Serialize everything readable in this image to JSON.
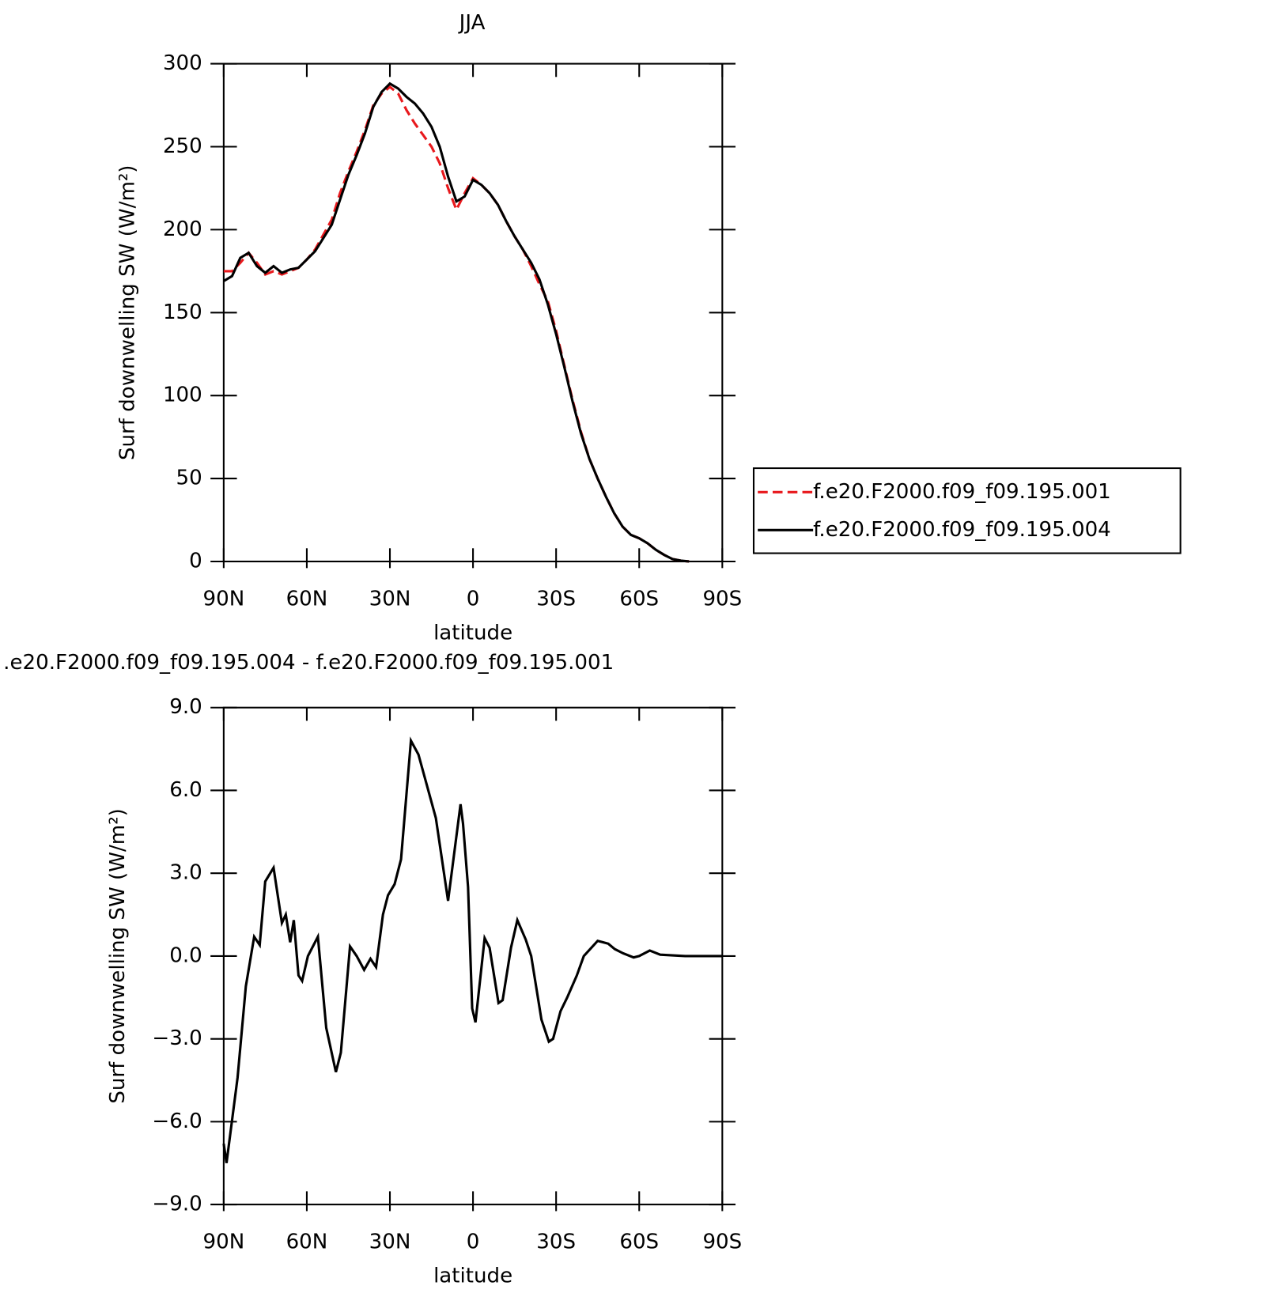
{
  "chart_data": [
    {
      "type": "line",
      "title": "JJA",
      "x_label": "latitude",
      "y_label": "Surf downwelling SW (W/m²)",
      "xlim": [
        90,
        -90
      ],
      "xticks": [
        {
          "value": 90,
          "label": "90N"
        },
        {
          "value": 60,
          "label": "60N"
        },
        {
          "value": 30,
          "label": "30N"
        },
        0,
        {
          "value": -30,
          "label": "30S"
        },
        {
          "value": -60,
          "label": "60S"
        },
        {
          "value": -90,
          "label": "90S"
        }
      ],
      "ylim": [
        0,
        300
      ],
      "yticks": [
        0,
        50,
        100,
        150,
        200,
        250,
        300
      ],
      "legend": "right",
      "x": [
        90,
        87,
        84,
        81,
        78,
        75,
        72,
        69,
        66,
        63,
        60,
        57,
        54,
        51,
        48,
        45,
        42,
        39,
        36,
        33,
        30,
        27,
        24,
        21,
        18,
        15,
        12,
        9,
        6,
        3,
        0,
        -3,
        -6,
        -9,
        -12,
        -15,
        -18,
        -21,
        -24,
        -27,
        -30,
        -33,
        -36,
        -39,
        -42,
        -45,
        -48,
        -51,
        -54,
        -57,
        -60,
        -63,
        -66,
        -69,
        -72,
        -75,
        -78,
        -81,
        -84,
        -87,
        -90
      ],
      "series": [
        {
          "name": "f.e20.F2000.f09_f09.195.001",
          "color": "#e8191d",
          "line_style": "dashed",
          "values": [
            175,
            175,
            180,
            186,
            180,
            173,
            175,
            173,
            175,
            177,
            182,
            188,
            197,
            206,
            222,
            235,
            247,
            260,
            275,
            282,
            286,
            282,
            272,
            264,
            257,
            250,
            240,
            225,
            212,
            222,
            231,
            227,
            222,
            215,
            205,
            196,
            188,
            178,
            167,
            157,
            139,
            118,
            97,
            78,
            62,
            50,
            39,
            29,
            21,
            16,
            14,
            11,
            7,
            4,
            1.5,
            0.5,
            0,
            null,
            null,
            null,
            null
          ]
        },
        {
          "name": "f.e20.F2000.f09_f09.195.004",
          "color": "#000000",
          "line_style": "solid",
          "values": [
            169,
            172,
            183,
            186,
            178,
            174,
            178,
            174,
            176,
            177,
            182,
            187,
            195,
            203,
            218,
            233,
            245,
            258,
            274,
            283,
            288,
            285,
            280,
            276,
            270,
            262,
            250,
            232,
            217,
            220,
            230,
            227,
            222,
            215,
            205,
            196,
            188,
            180,
            170,
            155,
            137,
            117,
            96,
            77,
            62,
            50,
            39,
            29,
            21,
            16,
            14,
            11,
            7,
            4,
            1.5,
            0.5,
            0,
            null,
            null,
            null,
            null
          ]
        }
      ]
    },
    {
      "type": "line",
      "title": ".e20.F2000.f09_f09.195.004 - f.e20.F2000.f09_f09.195.001",
      "x_label": "latitude",
      "y_label": "Surf downwelling SW (W/m²)",
      "xlim": [
        90,
        -90
      ],
      "xticks": [
        {
          "value": 90,
          "label": "90N"
        },
        {
          "value": 60,
          "label": "60N"
        },
        {
          "value": 30,
          "label": "30N"
        },
        0,
        {
          "value": -30,
          "label": "30S"
        },
        {
          "value": -60,
          "label": "60S"
        },
        {
          "value": -90,
          "label": "90S"
        }
      ],
      "ylim": [
        -9,
        9
      ],
      "yticks": [
        {
          "value": -9,
          "label": "−9.0"
        },
        {
          "value": -6,
          "label": "−6.0"
        },
        {
          "value": -3,
          "label": "−3.0"
        },
        {
          "value": 0,
          "label": "0.0"
        },
        {
          "value": 3,
          "label": "3.0"
        },
        {
          "value": 6,
          "label": "6.0"
        },
        {
          "value": 9,
          "label": "9.0"
        }
      ],
      "x": [
        90,
        89,
        85,
        82,
        79,
        77,
        75,
        72,
        69,
        67.6,
        66,
        64.7,
        63,
        61.7,
        59.6,
        56,
        53,
        49.5,
        47.7,
        44.4,
        42,
        39.3,
        37,
        35,
        32.5,
        30.7,
        28.3,
        26,
        22.4,
        19.7,
        16.7,
        13.4,
        9,
        4.5,
        3.6,
        1.8,
        0.3,
        -0.9,
        -4.2,
        -6,
        -9.2,
        -10.7,
        -13.7,
        -16,
        -19,
        -21,
        -24.7,
        -27.4,
        -28.9,
        -31.6,
        -34,
        -37.5,
        -40,
        -45,
        -48.8,
        -51.2,
        -54.2,
        -58,
        -60,
        -63.8,
        -67.6,
        -76.6,
        -90
      ],
      "values": [
        -6.8,
        -7.5,
        -4.4,
        -1.1,
        0.7,
        0.4,
        2.7,
        3.2,
        1.2,
        1.5,
        0.5,
        1.3,
        -0.7,
        -0.9,
        0,
        0.7,
        -2.6,
        -4.2,
        -3.5,
        0.35,
        0,
        -0.5,
        -0.1,
        -0.4,
        1.5,
        2.2,
        2.6,
        3.5,
        7.8,
        7.3,
        6.2,
        5.0,
        2.0,
        5.5,
        4.8,
        2.5,
        -1.9,
        -2.4,
        0.65,
        0.3,
        -1.7,
        -1.6,
        0.3,
        1.3,
        0.6,
        0,
        -2.3,
        -3.1,
        -3.0,
        -2.0,
        -1.5,
        -0.7,
        0,
        0.55,
        0.45,
        0.25,
        0.1,
        -0.05,
        0,
        0.2,
        0.05,
        0,
        0
      ],
      "color": "#000000"
    }
  ]
}
